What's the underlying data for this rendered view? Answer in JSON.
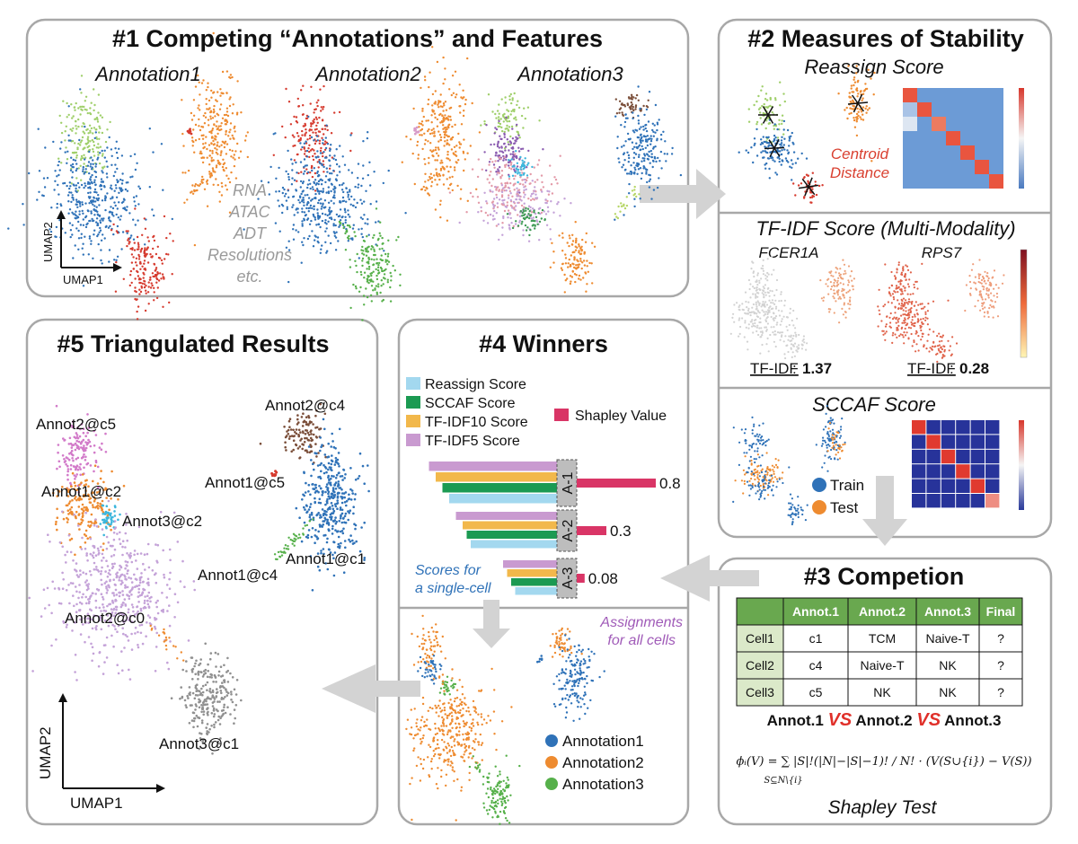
{
  "colors": {
    "blue": "#2f72b8",
    "orange": "#ee8b30",
    "green": "#56b04a",
    "red": "#d63b2f",
    "purple": "#8a5bb0",
    "pink": "#d79ac8",
    "brown": "#7b4f3a",
    "lightgreen": "#9fcf6a",
    "cyan": "#3cb6dc",
    "lilac": "#c4a2d8",
    "grey": "#909090",
    "table_head": "#69a84f",
    "table_side": "#dbe9c9"
  },
  "panel1": {
    "title": "#1 Competing “Annotations” and Features",
    "annotations": [
      "Annotation1",
      "Annotation2",
      "Annotation3"
    ],
    "features": [
      "RNA",
      "ATAC",
      "ADT",
      "Resolutions",
      "etc."
    ],
    "axis_x": "UMAP1",
    "axis_y": "UMAP2"
  },
  "panel2": {
    "title": "#2 Measures of Stability",
    "reassign_title": "Reassign Score",
    "centroid_line1": "Centroid",
    "centroid_line2": "Distance",
    "tfidf_title": "TF-IDF Score (Multi-Modality)",
    "gene1": "FCER1A",
    "gene2": "RPS7",
    "tfidf_label": "TF-IDF",
    "tfidf_sep": ":",
    "tfidf_value1": "1.37",
    "tfidf_value2": "0.28",
    "sccaf_title": "SCCAF Score",
    "train_label": "Train",
    "test_label": "Test"
  },
  "panel3": {
    "title": "#3 Competion",
    "table": {
      "headers": [
        "",
        "Annot.1",
        "Annot.2",
        "Annot.3",
        "Final"
      ],
      "rows": [
        [
          "Cell1",
          "c1",
          "TCM",
          "Naive-T",
          "?"
        ],
        [
          "Cell2",
          "c4",
          "Naive-T",
          "NK",
          "?"
        ],
        [
          "Cell3",
          "c5",
          "NK",
          "NK",
          "?"
        ]
      ]
    },
    "versus": [
      "Annot.1",
      "VS",
      "Annot.2",
      "VS",
      "Annot.3"
    ],
    "formula": "ϕᵢ(V) = ∑ |S|!(|N|−|S|−1)! / N! · (V(S∪{i}) − V(S))",
    "formula_sub": "S⊆N\\{i}",
    "shapley_test": "Shapley Test"
  },
  "panel4": {
    "title": "#4 Winners",
    "legend": [
      "Reassign Score",
      "SCCAF Score",
      "TF-IDF10 Score",
      "TF-IDF5 Score"
    ],
    "legend_colors": [
      "#a3d8ef",
      "#1b9a52",
      "#f2b84b",
      "#c99ad0"
    ],
    "shapley_label": "Shapley Value",
    "shapley_color": "#d93566",
    "scores_line1": "Scores for",
    "scores_line2": "a single-cell",
    "assign_line1": "Assignments",
    "assign_line2": "for all cells",
    "assign_legend": [
      "Annotation1",
      "Annotation2",
      "Annotation3"
    ]
  },
  "panel5": {
    "title": "#5 Triangulated Results",
    "labels": [
      "Annot2@c4",
      "Annot2@c5",
      "Annot1@c5",
      "Annot1@c2",
      "Annot3@c2",
      "Annot1@c1",
      "Annot1@c4",
      "Annot2@c0",
      "Annot3@c1"
    ],
    "axis_x": "UMAP1",
    "axis_y": "UMAP2"
  },
  "chart_data": {
    "type": "bar",
    "orientation": "horizontal",
    "title": "#4 Winners",
    "categories": [
      "A-1",
      "A-2",
      "A-3"
    ],
    "series": [
      {
        "name": "TF-IDF5 Score",
        "values": [
          0.95,
          0.75,
          0.4
        ]
      },
      {
        "name": "TF-IDF10 Score",
        "values": [
          0.9,
          0.7,
          0.37
        ]
      },
      {
        "name": "SCCAF Score",
        "values": [
          0.85,
          0.67,
          0.34
        ]
      },
      {
        "name": "Reassign Score",
        "values": [
          0.8,
          0.64,
          0.31
        ]
      }
    ],
    "shapley": {
      "name": "Shapley Value",
      "values": [
        0.8,
        0.3,
        0.08
      ],
      "labels": [
        "0.8",
        "0.3",
        "0.08"
      ]
    }
  }
}
